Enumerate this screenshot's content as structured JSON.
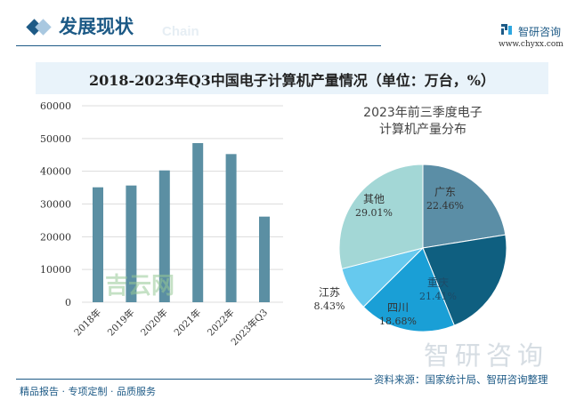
{
  "header": {
    "title": "发展现状",
    "subtitle_en": "Chain",
    "logo_text": "智研咨询",
    "logo_url": "www.chyxx.com"
  },
  "footer": {
    "slogan": "精品报告 · 专项定制 · 品质服务",
    "source": "资料来源：国家统计局、智研咨询整理"
  },
  "watermarks": {
    "main": "吉云网",
    "brand": "智研咨询"
  },
  "colors": {
    "bar": "#5b8fa3",
    "brand": "#1d5a86"
  },
  "chart_data": [
    {
      "type": "bar",
      "title": "2018-2023年Q3中国电子计算机产量情况（单位：万台，%）",
      "categories": [
        "2018年",
        "2019年",
        "2020年",
        "2021年",
        "2022年",
        "2023年Q3"
      ],
      "values": [
        35100,
        35650,
        40260,
        48600,
        45250,
        26150
      ],
      "ylim": [
        0,
        60000
      ],
      "yticks": [
        0,
        10000,
        20000,
        30000,
        40000,
        50000,
        60000
      ],
      "grid": true
    },
    {
      "type": "pie",
      "title": "2023年前三季度电子计算机产量分布",
      "slices": [
        {
          "label": "广东",
          "value": 22.46,
          "text": "22.46%",
          "color": "#5b8ea6"
        },
        {
          "label": "重庆",
          "value": 21.41,
          "text": "21.41%",
          "color": "#0f5f80"
        },
        {
          "label": "四川",
          "value": 18.68,
          "text": "18.68%",
          "color": "#1a9fd6"
        },
        {
          "label": "江苏",
          "value": 8.43,
          "text": "8.43%",
          "color": "#66c9ee"
        },
        {
          "label": "其他",
          "value": 29.01,
          "text": "29.01%",
          "color": "#a3d7d6"
        }
      ]
    }
  ]
}
